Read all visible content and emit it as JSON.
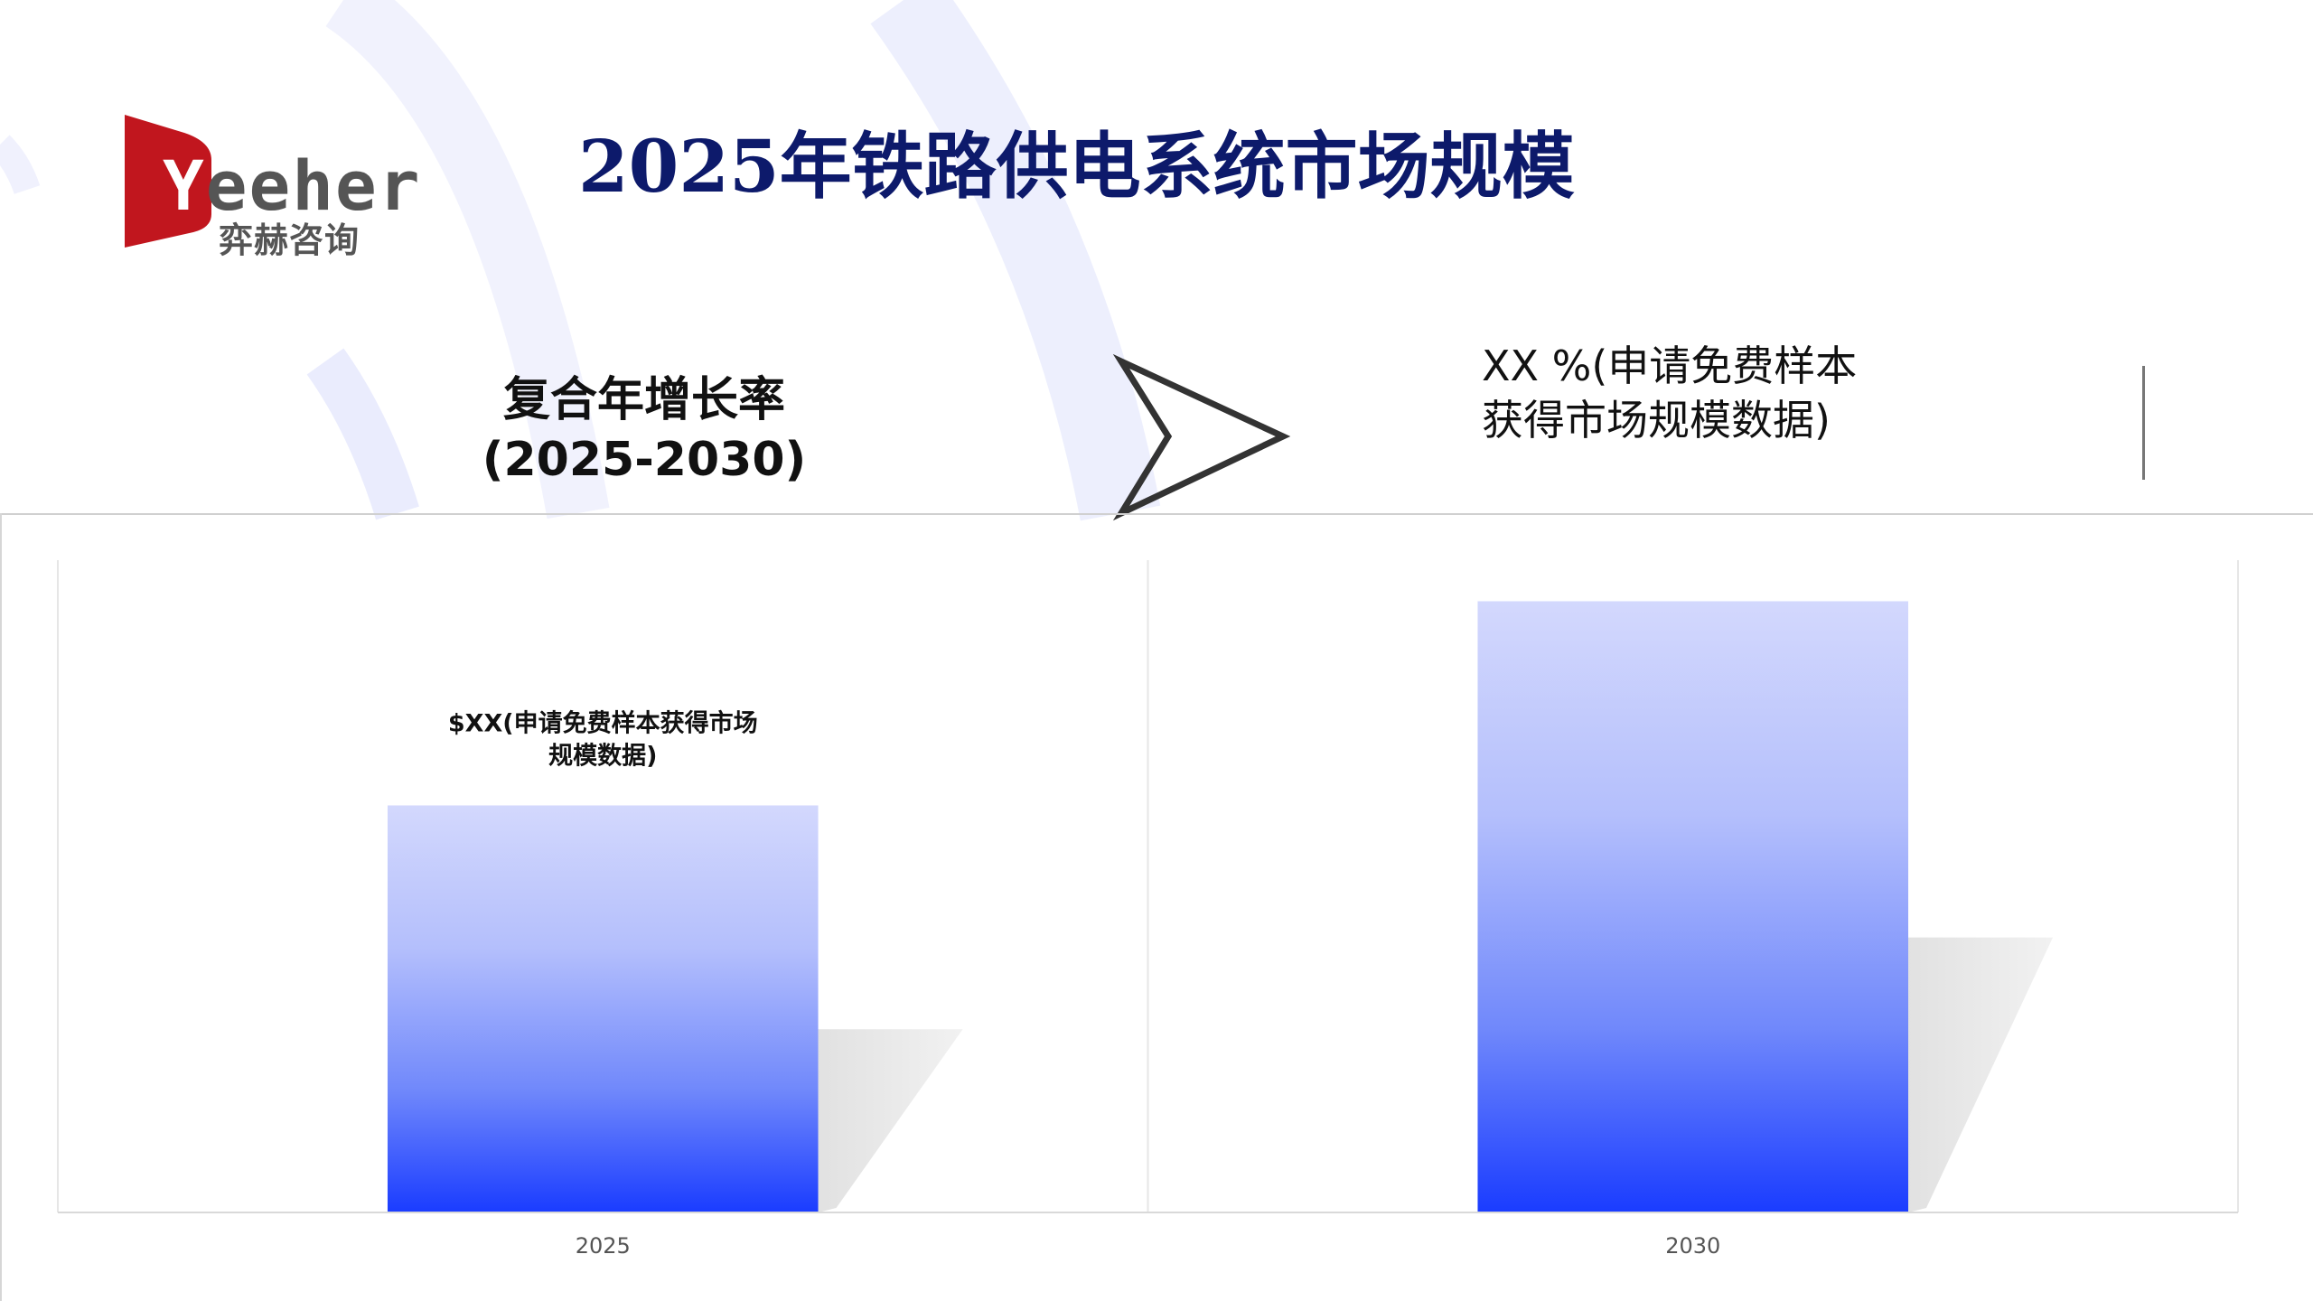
{
  "logo": {
    "en": "Yeeher",
    "en_first": "Y",
    "en_rest": "eeher",
    "cn": "弈赫咨询",
    "brand_color": "#c1161e"
  },
  "title": "2025年铁路供电系统市场规模",
  "cagr": {
    "label_line1": "复合年增长率",
    "label_line2": "(2025-2030)"
  },
  "rate": {
    "line1": "XX %(申请免费样本",
    "line2": "获得市场规模数据)"
  },
  "colors": {
    "title": "#0d1a6b",
    "bar_top": "#d3d8fd",
    "bar_bottom": "#1a3cff",
    "shadow": "#e2e2e2"
  },
  "chart_data": {
    "type": "bar",
    "categories": [
      "2025",
      "2030"
    ],
    "values": [
      62.4,
      93.7
    ],
    "ylim": [
      0,
      100
    ],
    "title": "",
    "xlabel": "",
    "ylabel": "",
    "grid": "vertical category separators",
    "data_labels": [
      [
        "$XX(申请免费样本获得市场",
        "规模数据)"
      ],
      null
    ]
  }
}
